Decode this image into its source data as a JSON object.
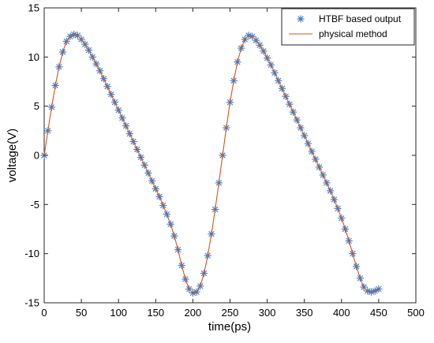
{
  "chart_data": {
    "type": "line",
    "xlabel": "time(ps)",
    "ylabel": "voltage(V)",
    "xlim": [
      0,
      500
    ],
    "ylim": [
      -15,
      15
    ],
    "xticks": [
      "0",
      "50",
      "100",
      "150",
      "200",
      "250",
      "300",
      "350",
      "400",
      "450",
      "500"
    ],
    "yticks": [
      "15",
      "10",
      "5",
      "0",
      "-5",
      "-10",
      "-15"
    ],
    "grid": false,
    "legend_position": "top-right",
    "series": [
      {
        "name": "HTBF based output",
        "marker": "asterisk",
        "color": "#3a78c4",
        "x": [
          0,
          5,
          10,
          15,
          20,
          25,
          30,
          35,
          40,
          45,
          50,
          55,
          60,
          65,
          70,
          75,
          80,
          85,
          90,
          95,
          100,
          105,
          110,
          115,
          120,
          125,
          130,
          135,
          140,
          145,
          150,
          155,
          160,
          165,
          170,
          175,
          180,
          185,
          190,
          195,
          200,
          205,
          210,
          215,
          220,
          225,
          230,
          235,
          240,
          245,
          250,
          255,
          260,
          265,
          270,
          275,
          280,
          285,
          290,
          295,
          300,
          305,
          310,
          315,
          320,
          325,
          330,
          335,
          340,
          345,
          350,
          355,
          360,
          365,
          370,
          375,
          380,
          385,
          390,
          395,
          400,
          405,
          410,
          415,
          420,
          425,
          430,
          435,
          440,
          445,
          450
        ],
        "y": [
          0,
          2.5,
          4.9,
          7.1,
          9.0,
          10.5,
          11.6,
          12.1,
          12.3,
          12.2,
          11.8,
          11.3,
          10.7,
          10.0,
          9.3,
          8.6,
          7.8,
          7.0,
          6.2,
          5.4,
          4.6,
          3.8,
          3.0,
          2.2,
          1.4,
          0.6,
          -0.2,
          -1.0,
          -1.8,
          -2.6,
          -3.4,
          -4.2,
          -5.1,
          -6.0,
          -7.0,
          -8.2,
          -9.6,
          -11.2,
          -12.6,
          -13.6,
          -14.0,
          -13.9,
          -13.3,
          -12.0,
          -10.2,
          -8.0,
          -5.5,
          -2.8,
          0.0,
          2.8,
          5.4,
          7.6,
          9.5,
          10.9,
          11.8,
          12.2,
          12.1,
          11.7,
          11.2,
          10.6,
          9.9,
          9.2,
          8.4,
          7.6,
          6.8,
          6.0,
          5.2,
          4.4,
          3.6,
          2.8,
          2.0,
          1.2,
          0.4,
          -0.4,
          -1.2,
          -2.0,
          -2.8,
          -3.6,
          -4.5,
          -5.4,
          -6.4,
          -7.5,
          -8.7,
          -10.0,
          -11.3,
          -12.5,
          -13.4,
          -13.8,
          -13.9,
          -13.8,
          -13.6
        ]
      },
      {
        "name": "physical method",
        "marker": "line",
        "color": "#d95319",
        "x": [
          0,
          5,
          10,
          15,
          20,
          25,
          30,
          35,
          40,
          45,
          50,
          55,
          60,
          65,
          70,
          75,
          80,
          85,
          90,
          95,
          100,
          105,
          110,
          115,
          120,
          125,
          130,
          135,
          140,
          145,
          150,
          155,
          160,
          165,
          170,
          175,
          180,
          185,
          190,
          195,
          200,
          205,
          210,
          215,
          220,
          225,
          230,
          235,
          240,
          245,
          250,
          255,
          260,
          265,
          270,
          275,
          280,
          285,
          290,
          295,
          300,
          305,
          310,
          315,
          320,
          325,
          330,
          335,
          340,
          345,
          350,
          355,
          360,
          365,
          370,
          375,
          380,
          385,
          390,
          395,
          400,
          405,
          410,
          415,
          420,
          425,
          430,
          435,
          440,
          445,
          450
        ],
        "y": [
          0,
          2.5,
          4.9,
          7.1,
          9.0,
          10.5,
          11.6,
          12.1,
          12.3,
          12.2,
          11.8,
          11.3,
          10.7,
          10.0,
          9.3,
          8.6,
          7.8,
          7.0,
          6.2,
          5.4,
          4.6,
          3.8,
          3.0,
          2.2,
          1.4,
          0.6,
          -0.2,
          -1.0,
          -1.8,
          -2.6,
          -3.4,
          -4.2,
          -5.1,
          -6.0,
          -7.0,
          -8.2,
          -9.6,
          -11.2,
          -12.6,
          -13.6,
          -14.0,
          -13.9,
          -13.3,
          -12.0,
          -10.2,
          -8.0,
          -5.5,
          -2.8,
          0.0,
          2.8,
          5.4,
          7.6,
          9.5,
          10.9,
          11.8,
          12.2,
          12.1,
          11.7,
          11.2,
          10.6,
          9.9,
          9.2,
          8.4,
          7.6,
          6.8,
          6.0,
          5.2,
          4.4,
          3.6,
          2.8,
          2.0,
          1.2,
          0.4,
          -0.4,
          -1.2,
          -2.0,
          -2.8,
          -3.6,
          -4.5,
          -5.4,
          -6.4,
          -7.5,
          -8.7,
          -10.0,
          -11.3,
          -12.5,
          -13.4,
          -13.8,
          -13.9,
          -13.8,
          -13.6
        ]
      }
    ]
  }
}
